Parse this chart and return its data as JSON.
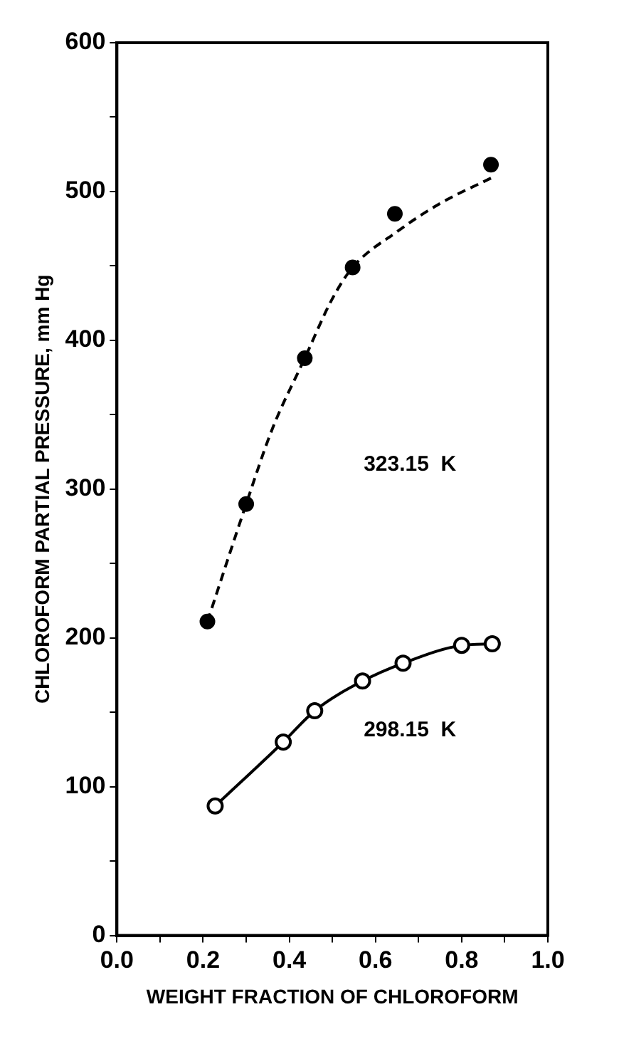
{
  "chart_data": {
    "type": "line",
    "xlabel": "WEIGHT FRACTION OF CHLOROFORM",
    "ylabel": "CHLOROFORM PARTIAL PRESSURE, mm Hg",
    "xlim": [
      0,
      1
    ],
    "xticks": [
      {
        "value": 0,
        "label": "0.0"
      },
      {
        "value": 0.1,
        "label": null
      },
      {
        "value": 0.2,
        "label": "0.2"
      },
      {
        "value": 0.3,
        "label": null
      },
      {
        "value": 0.4,
        "label": "0.4"
      },
      {
        "value": 0.5,
        "label": null
      },
      {
        "value": 0.6,
        "label": "0.6"
      },
      {
        "value": 0.7,
        "label": null
      },
      {
        "value": 0.8,
        "label": "0.8"
      },
      {
        "value": 0.9,
        "label": null
      },
      {
        "value": 1,
        "label": "1.0"
      }
    ],
    "ylim": [
      0,
      600
    ],
    "yticks": [
      0,
      {
        "value": 50,
        "label": null
      },
      100,
      {
        "value": 150,
        "label": null
      },
      200,
      {
        "value": 250,
        "label": null
      },
      300,
      {
        "value": 350,
        "label": null
      },
      400,
      {
        "value": 450,
        "label": null
      },
      500,
      {
        "value": 550,
        "label": null
      },
      600
    ],
    "grid": false,
    "legend": false,
    "series": [
      {
        "type": "scatter",
        "color": "#000000",
        "marker": "circle",
        "x": [
          0.21,
          0.3,
          0.436,
          0.547,
          0.645,
          0.868
        ],
        "values": [
          211,
          290,
          388,
          449,
          485,
          518
        ]
      },
      {
        "type": "line",
        "color": "#000000",
        "marker": "none",
        "line_style": "dashed",
        "x": [
          0.21,
          0.3,
          0.36,
          0.436,
          0.5,
          0.547,
          0.65,
          0.75,
          0.868
        ],
        "values": [
          211,
          290,
          340,
          388,
          428,
          449,
          473,
          492,
          509
        ]
      },
      {
        "type": "line",
        "color": "#000000",
        "marker": "circle",
        "line_style": "solid",
        "x": [
          0.228,
          0.386,
          0.459,
          0.57,
          0.664,
          0.8,
          0.871
        ],
        "values": [
          87,
          130,
          151,
          171,
          183,
          195,
          196
        ]
      }
    ],
    "annotations": [
      "323.15  K",
      "298.15  K"
    ]
  }
}
